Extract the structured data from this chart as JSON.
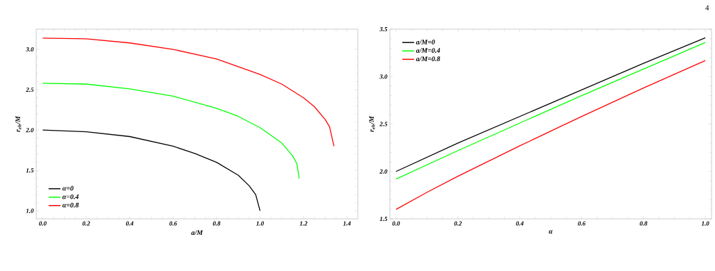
{
  "chart_data": [
    {
      "type": "line",
      "xlabel": "a/M",
      "ylabel": "r$_{eh}$/M",
      "legend": "bottom left",
      "xlim": [
        -0.03,
        1.45
      ],
      "ylim": [
        0.9,
        3.25
      ],
      "xticks": [
        {
          "value": 0,
          "label": "0.0"
        },
        {
          "value": 0.2,
          "label": "0.2"
        },
        {
          "value": 0.4,
          "label": "0.4"
        },
        {
          "value": 0.6,
          "label": "0.6"
        },
        {
          "value": 0.8,
          "label": "0.8"
        },
        {
          "value": 1,
          "label": "1.0"
        },
        {
          "value": 1.2,
          "label": "1.2"
        },
        {
          "value": 1.4,
          "label": "1.4"
        }
      ],
      "yticks": [
        {
          "value": 1,
          "label": "1.0"
        },
        {
          "value": 1.5,
          "label": "1.5"
        },
        {
          "value": 2,
          "label": "2.0"
        },
        {
          "value": 2.5,
          "label": "2.5"
        },
        {
          "value": 3,
          "label": "3.0"
        }
      ],
      "series": [
        {
          "name": "α=0",
          "color": "#000000",
          "x": [
            0,
            0.2,
            0.4,
            0.6,
            0.7,
            0.8,
            0.9,
            0.95,
            0.98,
            1.0
          ],
          "values": [
            2.0,
            1.98,
            1.92,
            1.8,
            1.71,
            1.6,
            1.44,
            1.31,
            1.2,
            1.0
          ]
        },
        {
          "name": "α=0.4",
          "color": "#00ff00",
          "x": [
            0,
            0.2,
            0.4,
            0.6,
            0.8,
            0.9,
            1.0,
            1.1,
            1.15,
            1.17,
            1.18
          ],
          "values": [
            2.58,
            2.57,
            2.51,
            2.42,
            2.27,
            2.17,
            2.03,
            1.84,
            1.68,
            1.58,
            1.4
          ]
        },
        {
          "name": "α=0.8",
          "color": "#ff0000",
          "x": [
            0,
            0.2,
            0.4,
            0.6,
            0.8,
            1.0,
            1.1,
            1.2,
            1.25,
            1.3,
            1.32,
            1.34
          ],
          "values": [
            3.14,
            3.13,
            3.08,
            3.0,
            2.88,
            2.69,
            2.57,
            2.4,
            2.29,
            2.13,
            2.04,
            1.8
          ]
        }
      ]
    },
    {
      "type": "line",
      "xlabel": "α",
      "ylabel": "r$_{eh}$/M",
      "legend": "top left",
      "annotations": [
        "4"
      ],
      "xlim": [
        -0.02,
        1.02
      ],
      "ylim": [
        1.5,
        3.5
      ],
      "xticks": [
        {
          "value": 0,
          "label": "0.0"
        },
        {
          "value": 0.2,
          "label": "0.2"
        },
        {
          "value": 0.4,
          "label": "0.4"
        },
        {
          "value": 0.6,
          "label": "0.6"
        },
        {
          "value": 0.8,
          "label": "0.8"
        },
        {
          "value": 1,
          "label": "1.0"
        }
      ],
      "yticks": [
        {
          "value": 1.5,
          "label": "1.5"
        },
        {
          "value": 2,
          "label": "2.0"
        },
        {
          "value": 2.5,
          "label": "2.5"
        },
        {
          "value": 3,
          "label": "3.0"
        },
        {
          "value": 3.5,
          "label": "3.5"
        }
      ],
      "series": [
        {
          "name": "a/M=0",
          "color": "#000000",
          "x": [
            0,
            0.2,
            0.4,
            0.6,
            0.8,
            1.0
          ],
          "values": [
            2.0,
            2.3,
            2.58,
            2.86,
            3.14,
            3.41
          ]
        },
        {
          "name": "a/M=0.4",
          "color": "#00ff00",
          "x": [
            0,
            0.2,
            0.4,
            0.6,
            0.8,
            1.0
          ],
          "values": [
            1.92,
            2.22,
            2.51,
            2.8,
            3.08,
            3.36
          ]
        },
        {
          "name": "a/M=0.8",
          "color": "#ff0000",
          "x": [
            0,
            0.1,
            0.2,
            0.4,
            0.6,
            0.8,
            1.0
          ],
          "values": [
            1.6,
            1.78,
            1.95,
            2.27,
            2.58,
            2.88,
            3.17
          ]
        }
      ]
    }
  ]
}
